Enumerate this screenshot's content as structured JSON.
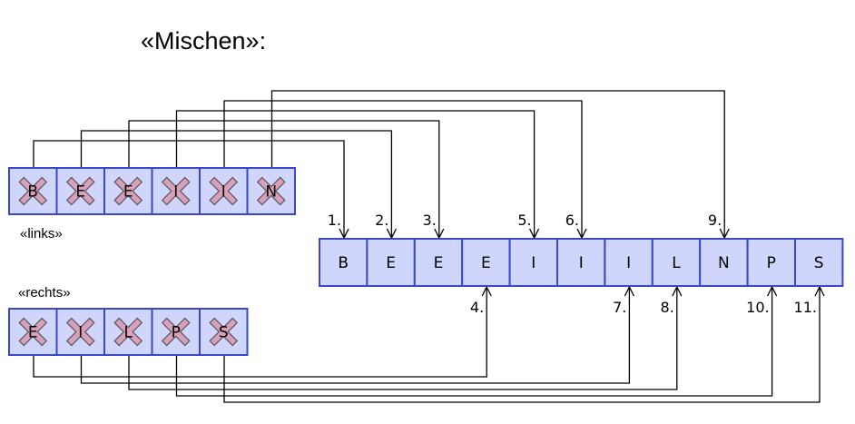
{
  "title": "«Mischen»:",
  "left": {
    "label": "«links»",
    "letters": [
      "B",
      "E",
      "E",
      "I",
      "I",
      "N"
    ]
  },
  "right": {
    "label": "«rechts»",
    "letters": [
      "E",
      "I",
      "L",
      "P",
      "S"
    ]
  },
  "result": {
    "letters": [
      "B",
      "E",
      "E",
      "E",
      "I",
      "I",
      "I",
      "L",
      "N",
      "P",
      "S"
    ]
  },
  "steps": [
    {
      "label": "1.",
      "from": "left",
      "src": 0,
      "dst": 0
    },
    {
      "label": "2.",
      "from": "left",
      "src": 1,
      "dst": 1
    },
    {
      "label": "3.",
      "from": "left",
      "src": 2,
      "dst": 2
    },
    {
      "label": "4.",
      "from": "right",
      "src": 0,
      "dst": 3
    },
    {
      "label": "5.",
      "from": "left",
      "src": 3,
      "dst": 4
    },
    {
      "label": "6.",
      "from": "left",
      "src": 4,
      "dst": 5
    },
    {
      "label": "7.",
      "from": "right",
      "src": 1,
      "dst": 6
    },
    {
      "label": "8.",
      "from": "right",
      "src": 2,
      "dst": 7
    },
    {
      "label": "9.",
      "from": "left",
      "src": 5,
      "dst": 8
    },
    {
      "label": "10.",
      "from": "right",
      "src": 3,
      "dst": 9
    },
    {
      "label": "11.",
      "from": "right",
      "src": 4,
      "dst": 10
    }
  ],
  "colors": {
    "cell_fill": "#cfd5fb",
    "cell_border": "#3848c8",
    "cross_fill": "#d9a0bb",
    "line": "#000000"
  }
}
